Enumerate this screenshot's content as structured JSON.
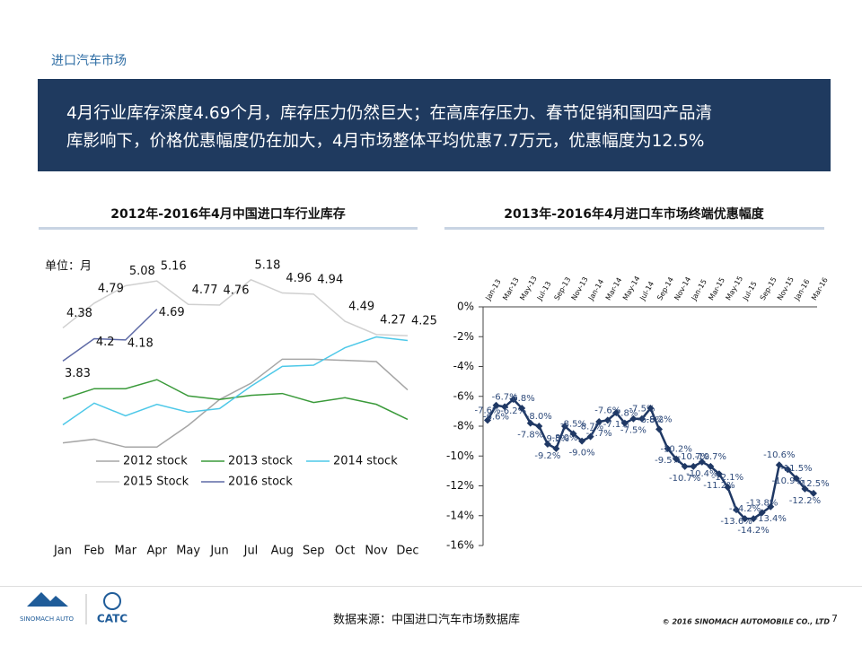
{
  "header": {
    "section": "进口汽车市场",
    "banner": [
      "4月行业库存深度4.69个月，库存压力仍然巨大；在高库存压力、春节促销和国四产品清",
      "库影响下，价格优惠幅度仍在加大，4月市场整体平均优惠7.7万元，优惠幅度为12.5%"
    ]
  },
  "chart_data": [
    {
      "type": "line",
      "title": "2012年-2016年4月中国进口车行业库存",
      "unit_label": "单位：月",
      "categories": [
        "Jan",
        "Feb",
        "Mar",
        "Apr",
        "May",
        "Jun",
        "Jul",
        "Aug",
        "Sep",
        "Oct",
        "Nov",
        "Dec"
      ],
      "ylim": [
        2.3,
        5.4
      ],
      "legend": "lower-left",
      "series": [
        {
          "name": "2012 stock",
          "color": "#a6a6a6",
          "values": [
            2.47,
            2.53,
            2.4,
            2.4,
            2.76,
            3.19,
            3.46,
            3.86,
            3.86,
            3.84,
            3.82,
            3.35
          ]
        },
        {
          "name": "2013 stock",
          "color": "#3a9a3a",
          "values": [
            3.2,
            3.37,
            3.37,
            3.52,
            3.25,
            3.19,
            3.26,
            3.29,
            3.14,
            3.22,
            3.11,
            2.86
          ]
        },
        {
          "name": "2014 stock",
          "color": "#4dc8e8",
          "values": [
            2.77,
            3.13,
            2.92,
            3.11,
            2.98,
            3.04,
            3.41,
            3.74,
            3.76,
            4.05,
            4.23,
            4.17
          ]
        },
        {
          "name": "2015 Stock",
          "color": "#d0d0d0",
          "values": [
            4.38,
            4.79,
            5.08,
            5.16,
            4.77,
            4.76,
            5.18,
            4.96,
            4.94,
            4.49,
            4.27,
            4.25
          ],
          "data_labels": true
        },
        {
          "name": "2016  stock",
          "color": "#5e6aa6",
          "values": [
            3.83,
            4.2,
            4.18,
            4.69,
            null,
            null,
            null,
            null,
            null,
            null,
            null,
            null
          ],
          "data_labels": true
        }
      ]
    },
    {
      "type": "line",
      "title": "2013年-2016年4月进口车市场终端优惠幅度",
      "marker": "diamond",
      "categories": [
        "Jan-13",
        null,
        "Mar-13",
        null,
        "May-13",
        null,
        "Jul-13",
        null,
        "Sep-13",
        null,
        "Nov-13",
        null,
        "Jan-14",
        null,
        "Mar-14",
        null,
        "May-14",
        null,
        "Jul-14",
        null,
        "Sep-14",
        null,
        "Nov-14",
        null,
        "Jan-15",
        null,
        "Mar-15",
        null,
        "May-15",
        null,
        "Jul-15",
        null,
        "Sep-15",
        null,
        "Nov-15",
        null,
        "Jan-16",
        null,
        "Mar-16"
      ],
      "ylim": [
        -16,
        0
      ],
      "yticks": [
        {
          "value": 0,
          "label": "0%"
        },
        {
          "value": -2,
          "label": "-2%"
        },
        {
          "value": -4,
          "label": "-4%"
        },
        {
          "value": -6,
          "label": "-6%"
        },
        {
          "value": -8,
          "label": "-8%"
        },
        {
          "value": -10,
          "label": "-10%"
        },
        {
          "value": -12,
          "label": "-12%"
        },
        {
          "value": -14,
          "label": "-14%"
        },
        {
          "value": -16,
          "label": "-16%"
        }
      ],
      "series": [
        {
          "name": null,
          "color": "#1f3864",
          "values": [
            -7.6,
            -6.6,
            -6.7,
            -6.2,
            -6.8,
            -7.8,
            -8.0,
            -9.2,
            -9.5,
            -8.0,
            -8.5,
            -9.0,
            -8.7,
            -7.7,
            -7.6,
            -7.1,
            -7.8,
            -7.5,
            -7.5,
            -6.8,
            -8.2,
            -9.5,
            -10.2,
            -10.7,
            -10.7,
            -10.4,
            -10.7,
            -11.2,
            -12.1,
            -13.6,
            -14.2,
            -14.2,
            -13.8,
            -13.4,
            -10.6,
            -10.9,
            -11.5,
            -12.2,
            -12.5
          ],
          "value_labels": [
            "-7.6%",
            "-6.6%",
            "-6.7%",
            "-6.2%",
            "-6.8%",
            "-7.8%",
            "-8.0%",
            "-9.2%",
            "-9.5%",
            "-8.0%",
            "-8.5%",
            "-9.0%",
            "-8.7%",
            "-7.7%",
            "-7.6%",
            "-7.1%",
            "-7.8%",
            "-7.5%",
            "-7.5%",
            "-6.8%",
            "-8.2%",
            "-9.5%",
            "-10.2%",
            "-10.7%",
            "-10.7%",
            "-10.4%",
            "-10.7%",
            "-11.2%",
            "-12.1%",
            "-13.6%",
            "-14.2%",
            "-14.2%",
            "-13.8%",
            "-13.4%",
            "-10.6%",
            "-10.9%",
            "-11.5%",
            "-12.2%",
            "-12.5%"
          ]
        }
      ]
    }
  ],
  "footer": {
    "source": "数据来源：中国进口汽车市场数据库",
    "copyright": "© 2016 SINOMACH AUTOMOBILE CO., LTD",
    "page": "7",
    "logo_left": "SINOMACH AUTO",
    "logo_right": "CATC"
  }
}
